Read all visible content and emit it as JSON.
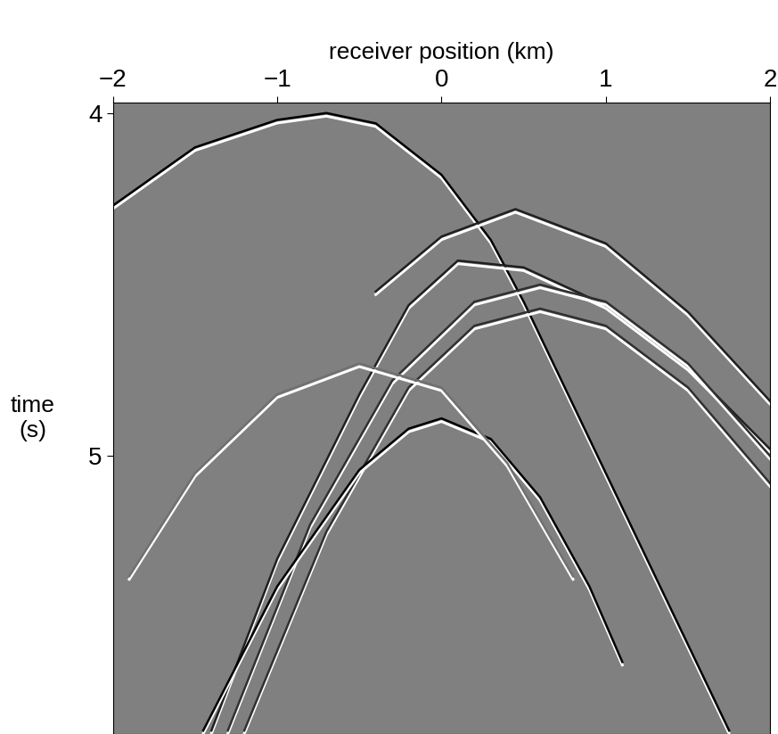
{
  "chart_data": {
    "type": "line",
    "x_label": "receiver position (km)",
    "y_label": "time\n(s)",
    "xlim": [
      -2,
      2
    ],
    "xticks": [
      -2,
      -1,
      0,
      1,
      2
    ],
    "ylim": [
      5.81,
      3.97
    ],
    "yticks": [
      4,
      5
    ],
    "grid": false,
    "series": [
      {
        "color": "#000000",
        "x": [
          -2,
          -1.5,
          -1,
          -0.7,
          -0.4,
          0,
          0.3,
          0.5,
          0.7,
          1.0,
          1.3,
          1.5,
          1.75
        ],
        "values": [
          4.27,
          4.1,
          4.02,
          4.0,
          4.03,
          4.18,
          4.37,
          4.55,
          4.75,
          5.05,
          5.35,
          5.55,
          5.8
        ]
      },
      {
        "color": "#202020",
        "x": [
          -0.4,
          0,
          0.45,
          1.0,
          1.5,
          2.0
        ],
        "values": [
          4.52,
          4.36,
          4.28,
          4.38,
          4.58,
          4.84
        ]
      },
      {
        "color": "#202020",
        "x": [
          -1.4,
          -1.0,
          -0.5,
          -0.2,
          0.1,
          0.5,
          1.0,
          1.5,
          2.0
        ],
        "values": [
          5.8,
          5.3,
          4.82,
          4.56,
          4.43,
          4.45,
          4.56,
          4.74,
          4.98
        ]
      },
      {
        "color": "#303030",
        "x": [
          -1.3,
          -0.8,
          -0.3,
          0.2,
          0.6,
          1.0,
          1.5,
          2.0
        ],
        "values": [
          5.8,
          5.2,
          4.78,
          4.55,
          4.5,
          4.55,
          4.73,
          5.0
        ]
      },
      {
        "color": "#303030",
        "x": [
          -1.2,
          -0.7,
          -0.2,
          0.2,
          0.6,
          1.0,
          1.5,
          2.0
        ],
        "values": [
          5.8,
          5.22,
          4.8,
          4.62,
          4.57,
          4.62,
          4.8,
          5.08
        ]
      },
      {
        "color": "#000000",
        "x": [
          -1.45,
          -1.0,
          -0.5,
          -0.2,
          0,
          0.3,
          0.6,
          0.9,
          1.1
        ],
        "values": [
          5.8,
          5.38,
          5.04,
          4.92,
          4.89,
          4.95,
          5.12,
          5.38,
          5.6
        ]
      },
      {
        "color": "#707070",
        "x": [
          -1.9,
          -1.5,
          -1.0,
          -0.5,
          0,
          0.4,
          0.8
        ],
        "values": [
          5.35,
          5.05,
          4.82,
          4.73,
          4.8,
          5.02,
          5.35
        ]
      }
    ]
  }
}
